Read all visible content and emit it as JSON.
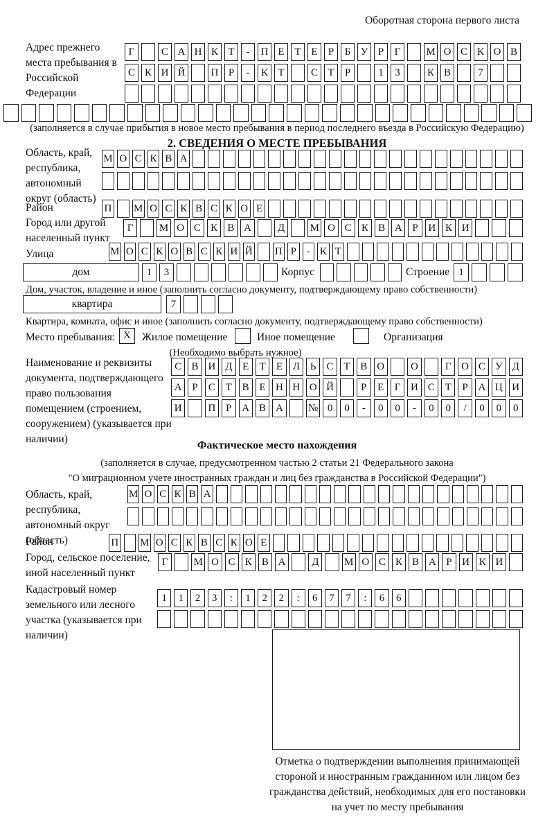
{
  "header": {
    "back_side_note": "Оборотная сторона первого листа"
  },
  "prev_address": {
    "label": "Адрес прежнего места пребывания в Российской Федерации",
    "row1": {
      "cells": "Г САНКТ-ПЕТЕРБУРГ МОСКОВ",
      "len": 24
    },
    "row2": {
      "cells": "СКИЙ ПР-КТ СТР 13 КВ 7",
      "len": 24
    },
    "row3": {
      "cells": "",
      "len": 24
    },
    "row4": {
      "cells": "",
      "len": 30
    },
    "caption": "(заполняется в случае прибытия в новое место пребывания в период последнего въезда в Российскую Федерацию)"
  },
  "section2": {
    "title": "2. СВЕДЕНИЯ О МЕСТЕ ПРЕБЫВАНИЯ",
    "region": {
      "label": "Область, край, республика, автономный округ (область)",
      "row1": {
        "cells": "МОСКВА",
        "len": 28
      },
      "row2": {
        "cells": "",
        "len": 28
      }
    },
    "district": {
      "label": "Район",
      "row1": {
        "cells": "П МОСКВСКОЕ",
        "len": 28
      }
    },
    "city": {
      "label": "Город или другой населенный пункт",
      "row1": {
        "cells": "Г МОСКВА Д МОСКВАРИКИ",
        "len": 24
      }
    },
    "street": {
      "label": "Улица",
      "row1": {
        "cells": "МОСКОВСКИЙ ПР-КТ",
        "len": 28
      }
    },
    "house": {
      "box_label": "дом",
      "cells1": {
        "cells": "13",
        "len": 8
      },
      "korpus_label": "Корпус",
      "cells2": {
        "cells": "",
        "len": 5
      },
      "stroenie_label": "Строение",
      "cells3": {
        "cells": "1",
        "len": 4
      },
      "caption": "Дом, участок, владение и иное (заполнить согласно документу, подтверждающему право собственности)"
    },
    "apartment": {
      "box_label": "квартира",
      "cells1": {
        "cells": "7",
        "len": 4
      },
      "caption": "Квартира, комната, офис и иное (заполнить согласно документу, подтверждающему право собственности)"
    },
    "stay_type": {
      "label": "Место пребывания:",
      "option1": {
        "label": "Жилое помещение",
        "mark": "X"
      },
      "option2": {
        "label": "Иное помещение",
        "mark": ""
      },
      "option3": {
        "label": "Организация",
        "mark": ""
      },
      "note": "(Необходимо выбрать нужное)"
    },
    "document": {
      "label": "Наименование и реквизиты документа, подтверждающего право пользования помещением (строением, сооружением) (указывается при наличии)",
      "row1": {
        "cells": "СВИДЕТЕЛЬСТВО О ГОСУД",
        "len": 21
      },
      "row2": {
        "cells": "АРСТВЕННОЙ РЕГИСТРАЦИ",
        "len": 21
      },
      "row3": {
        "cells": "И ПРАВА №00-00-00/000",
        "len": 21
      }
    }
  },
  "actual_location": {
    "title": "Фактическое место нахождения",
    "caption1": "(заполняется в случае, предусмотренном частью 2 статьи 21 Федерального закона",
    "caption2": "\"О миграционном учете иностранных граждан и лиц без гражданства в Российской Федерации\")",
    "region": {
      "label": "Область, край, республика, автономный округ (область)",
      "row1": {
        "cells": "МОСКВА",
        "len": 27
      },
      "row2": {
        "cells": "",
        "len": 27
      }
    },
    "district": {
      "label": "Район",
      "row1": {
        "cells": "П МОСКВСКОЕ",
        "len": 28
      }
    },
    "city": {
      "label": "Город, сельское поселение, иной населенный пункт",
      "row1": {
        "cells": "Г МОСКВА Д МОСКВАРИКИ",
        "len": 22
      }
    },
    "cadastral": {
      "label": "Кадастровый номер земельного или лесного участка (указывается при наличии)",
      "row1": {
        "cells": "1123:122:677:66",
        "len": 22
      },
      "row2": {
        "cells": "",
        "len": 22
      }
    },
    "stamp_note": "Отметка о подтверждении выполнения принимающей стороной и иностранным гражданином или лицом без гражданства действий, необходимых для его постановки на учет по месту пребывания"
  }
}
